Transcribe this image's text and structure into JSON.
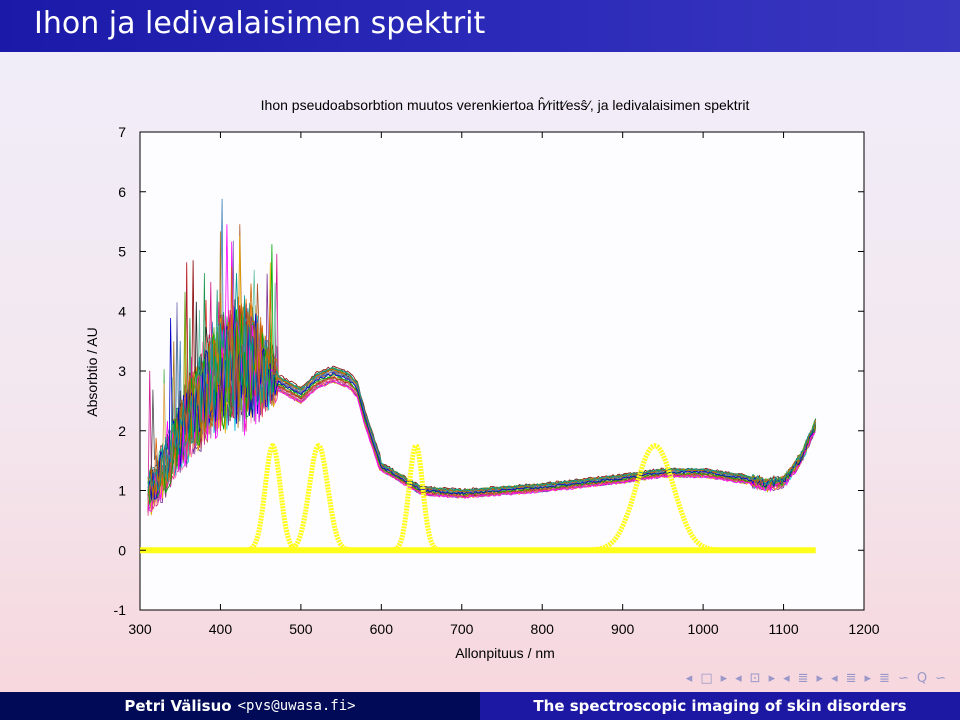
{
  "slide": {
    "title": "Ihon ja ledivalaisimen spektrit",
    "footer_author": "Petri Välisuo",
    "footer_email": "<pvs@uwasa.fi>",
    "footer_talk": "The spectroscopic imaging of skin disorders",
    "nav_icons": [
      "◂",
      "□",
      "▸",
      "◂",
      "⊡",
      "▸",
      "◂",
      "≣",
      "▸",
      "◂",
      "≣",
      "▸",
      "≣",
      "∽",
      "Q",
      "∽"
    ]
  },
  "colors": {
    "title_bar": "#2626b4",
    "footer_left": "#000a56",
    "footer_right": "#1c18a4",
    "led_color": "#ffff1a"
  },
  "chart_data": {
    "type": "line",
    "title": "Ihon pseudoabsorbtion muutos verenkiertoa ĥ⁄ritt⁄esŝ⁄, ja ledivalaisimen spektrit",
    "xlabel": "Allonpituus / nm",
    "ylabel": "Absorbtio / AU",
    "xlim": [
      300,
      1200
    ],
    "ylim": [
      -1,
      7
    ],
    "xticks": [
      300,
      400,
      500,
      600,
      700,
      800,
      900,
      1000,
      1100,
      1200
    ],
    "yticks": [
      -1,
      0,
      1,
      2,
      3,
      4,
      5,
      6,
      7
    ],
    "skin_spectra": {
      "count": 30,
      "wavelength_range": [
        310,
        1140
      ],
      "base_curve": {
        "x": [
          310,
          330,
          350,
          380,
          400,
          420,
          440,
          460,
          480,
          500,
          520,
          540,
          560,
          570,
          580,
          600,
          650,
          700,
          800,
          900,
          950,
          1000,
          1050,
          1080,
          1100,
          1120,
          1140
        ],
        "y": [
          0.9,
          1.3,
          1.9,
          2.5,
          2.85,
          3.0,
          3.05,
          2.9,
          2.75,
          2.6,
          2.85,
          2.95,
          2.85,
          2.7,
          2.2,
          1.4,
          1.0,
          0.95,
          1.05,
          1.2,
          1.3,
          1.3,
          1.2,
          1.1,
          1.15,
          1.5,
          2.1
        ]
      },
      "noise_region_nm": [
        310,
        470
      ],
      "max_spike_value": 6.7
    },
    "led_spectra": [
      {
        "peak_nm": 465,
        "fwhm_nm": 22,
        "amplitude": 1.75
      },
      {
        "peak_nm": 522,
        "fwhm_nm": 27,
        "amplitude": 1.75
      },
      {
        "peak_nm": 643,
        "fwhm_nm": 20,
        "amplitude": 1.75
      },
      {
        "peak_nm": 940,
        "fwhm_nm": 55,
        "amplitude": 1.75
      }
    ],
    "led_baseline_range_nm": [
      300,
      1140
    ],
    "grid": false,
    "legend": "none"
  }
}
